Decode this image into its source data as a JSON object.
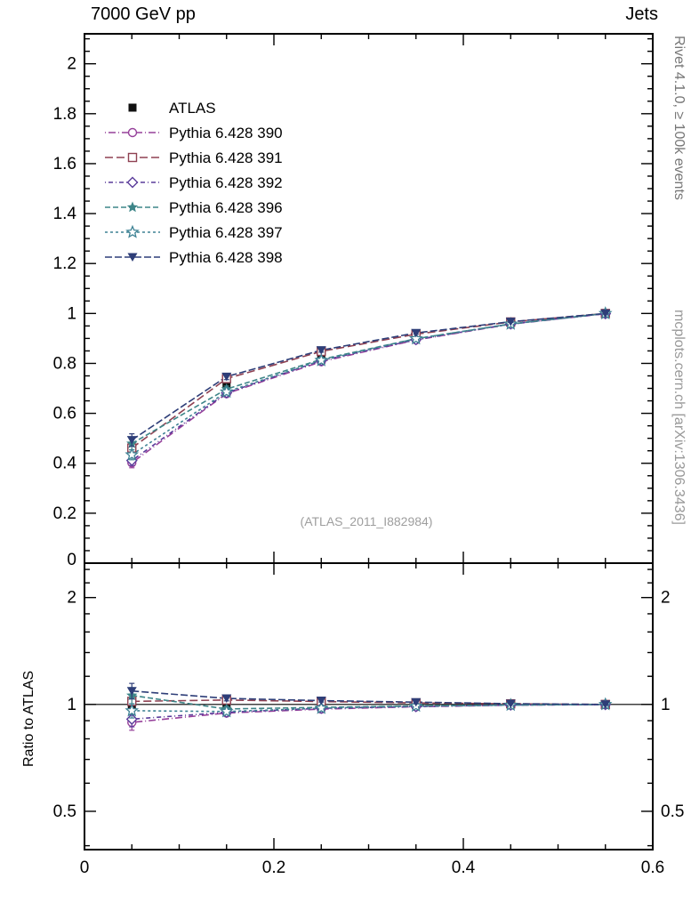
{
  "header": {
    "title_left": "7000 GeV pp",
    "title_right": "Jets"
  },
  "side_labels": {
    "rivet": "Rivet 4.1.0, ≥ 100k events",
    "mcplots": "mcplots.cern.ch [arXiv:1306.3436]"
  },
  "watermark": "(ATLAS_2011_I882984)",
  "chart_data": {
    "type": "line",
    "title": "7000 GeV pp, Jets",
    "ratio_ylabel": "Ratio to ATLAS",
    "x": [
      0.05,
      0.15,
      0.25,
      0.35,
      0.45,
      0.55
    ],
    "axes": {
      "xlim": [
        0,
        0.6
      ],
      "x_major_ticks": [
        0,
        0.2,
        0.4,
        0.6
      ],
      "x_tick_labels": [
        "0",
        "0.2",
        "0.4",
        "0.6"
      ],
      "x_minor_step": 0.05,
      "main_ylim": [
        0,
        2.12
      ],
      "main_major_step": 0.2,
      "main_minor_step": 0.05,
      "main_ytick_labels": [
        "0",
        "0.2",
        "0.4",
        "0.6",
        "0.8",
        "1",
        "1.2",
        "1.4",
        "1.6",
        "1.8",
        "2"
      ],
      "ratio_ylim": [
        0.39,
        2.5
      ],
      "ratio_scale": "log",
      "ratio_major_ticks": [
        0.5,
        1,
        2
      ],
      "ratio_tick_labels": [
        "0.5",
        "1",
        "2"
      ],
      "ratio_minor_ticks": [
        0.4,
        0.6,
        0.7,
        0.8,
        0.9,
        1.2,
        1.4,
        1.6,
        1.8,
        2.2,
        2.4
      ],
      "ratio_ref_line": 1,
      "grid": false,
      "legend_position": "top-left-inside"
    },
    "series": [
      {
        "name": "ATLAS",
        "marker": "square-filled",
        "color": "#111111",
        "line": "none",
        "dash": "",
        "values": [
          0.452,
          0.718,
          0.832,
          0.908,
          0.962,
          1.0
        ],
        "errors": [
          0.015,
          0.01,
          0.007,
          0.005,
          0.003,
          0.002
        ],
        "ratio": [
          1,
          1,
          1,
          1,
          1,
          1
        ]
      },
      {
        "name": "Pythia 6.428 390",
        "marker": "circle-open",
        "color": "#96409a",
        "line": "dashdot",
        "dash": "1,3,8,3",
        "values": [
          0.402,
          0.679,
          0.807,
          0.894,
          0.957,
          0.999
        ],
        "errors": [
          0.02,
          0.012,
          0.008,
          0.005,
          0.003,
          0.002
        ],
        "ratio": [
          0.89,
          0.946,
          0.97,
          0.985,
          0.995,
          0.999
        ]
      },
      {
        "name": "Pythia 6.428 391",
        "marker": "square-open",
        "color": "#8f4152",
        "line": "dashed",
        "dash": "9,4",
        "values": [
          0.461,
          0.739,
          0.848,
          0.917,
          0.966,
          1.0
        ],
        "errors": [
          0.02,
          0.012,
          0.008,
          0.005,
          0.003,
          0.002
        ],
        "ratio": [
          1.02,
          1.029,
          1.019,
          1.01,
          1.004,
          1.0
        ]
      },
      {
        "name": "Pythia 6.428 392",
        "marker": "diamond-open",
        "color": "#5a3b9a",
        "line": "dashdot",
        "dash": "1,3,5,3",
        "values": [
          0.411,
          0.682,
          0.811,
          0.895,
          0.958,
          0.999
        ],
        "errors": [
          0.02,
          0.012,
          0.008,
          0.005,
          0.003,
          0.002
        ],
        "ratio": [
          0.909,
          0.95,
          0.975,
          0.986,
          0.996,
          0.999
        ]
      },
      {
        "name": "Pythia 6.428 396",
        "marker": "star-filled",
        "color": "#3d8588",
        "line": "dashed",
        "dash": "6,3",
        "values": [
          0.479,
          0.697,
          0.816,
          0.899,
          0.958,
          1.0
        ],
        "errors": [
          0.025,
          0.012,
          0.008,
          0.005,
          0.003,
          0.002
        ],
        "ratio": [
          1.06,
          0.971,
          0.981,
          0.99,
          0.996,
          1.0
        ]
      },
      {
        "name": "Pythia 6.428 397",
        "marker": "star-open",
        "color": "#3e8294",
        "line": "dashed",
        "dash": "3,3",
        "values": [
          0.434,
          0.686,
          0.812,
          0.899,
          0.958,
          1.0
        ],
        "errors": [
          0.02,
          0.012,
          0.008,
          0.005,
          0.003,
          0.002
        ],
        "ratio": [
          0.96,
          0.955,
          0.976,
          0.99,
          0.996,
          1.0
        ]
      },
      {
        "name": "Pythia 6.428 398",
        "marker": "triangle-down-filled",
        "color": "#2e3e78",
        "line": "dashed",
        "dash": "8,3",
        "values": [
          0.493,
          0.747,
          0.853,
          0.922,
          0.967,
          1.0
        ],
        "errors": [
          0.025,
          0.012,
          0.008,
          0.005,
          0.003,
          0.002
        ],
        "ratio": [
          1.091,
          1.04,
          1.025,
          1.015,
          1.005,
          1.0
        ]
      }
    ]
  }
}
